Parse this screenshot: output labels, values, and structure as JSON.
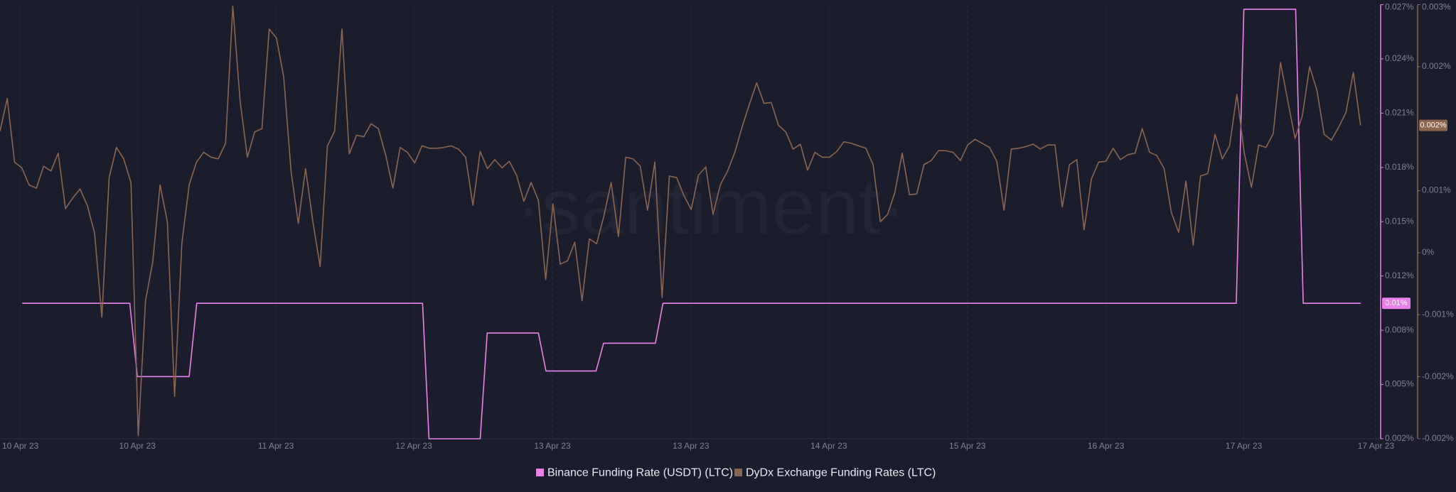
{
  "chart_data": {
    "type": "line",
    "watermark": "·santiment·",
    "xlim": [
      0,
      237.2
    ],
    "xticks": [
      {
        "value": 3.5,
        "label": "10 Apr 23"
      },
      {
        "value": 23.6,
        "label": "10 Apr 23"
      },
      {
        "value": 47.4,
        "label": "11 Apr 23"
      },
      {
        "value": 71.1,
        "label": "12 Apr 23"
      },
      {
        "value": 94.9,
        "label": "13 Apr 23"
      },
      {
        "value": 118.7,
        "label": "13 Apr 23"
      },
      {
        "value": 142.4,
        "label": "14 Apr 23"
      },
      {
        "value": 166.2,
        "label": "15 Apr 23"
      },
      {
        "value": 190,
        "label": "16 Apr 23"
      },
      {
        "value": 213.7,
        "label": "17 Apr 23"
      },
      {
        "value": 236.4,
        "label": "17 Apr 23"
      }
    ],
    "ylim": [
      0.0022,
      0.0272
    ],
    "yticks": [
      {
        "value": 0.0272,
        "label": "0.027%"
      },
      {
        "value": 0.024075,
        "label": "0.024%"
      },
      {
        "value": 0.02095,
        "label": "0.021%"
      },
      {
        "value": 0.017825,
        "label": "0.018%"
      },
      {
        "value": 0.0147,
        "label": "0.015%"
      },
      {
        "value": 0.011575,
        "label": "0.012%"
      },
      {
        "value": 0.00845,
        "label": "0.008%"
      },
      {
        "value": 0.005325,
        "label": "0.005%"
      },
      {
        "value": 0.0022,
        "label": "0.002%"
      }
    ],
    "y2lim": [
      -0.00228,
      0.00304
    ],
    "y2ticks": [
      {
        "value": 0.00304,
        "label": "0.003%"
      },
      {
        "value": 0.00228,
        "label": "0.002%"
      },
      {
        "value": 0.00076,
        "label": "0.001%"
      },
      {
        "value": 0,
        "label": "0%"
      },
      {
        "value": -0.00076,
        "label": "-0.001%"
      },
      {
        "value": -0.00152,
        "label": "-0.002%"
      },
      {
        "value": -0.00228,
        "label": "-0.002%"
      }
    ],
    "grid": true,
    "series": [
      {
        "name": "Binance Funding Rate (USDT) (LTC)",
        "color": "#ea80e9",
        "axis": "y",
        "last_value_label": "0.01%",
        "x": [
          3.8,
          22.3,
          23.6,
          32.5,
          33.8,
          72.6,
          73.7,
          82.5,
          83.7,
          92.5,
          93.8,
          102.4,
          103.7,
          112.6,
          113.9,
          212.4,
          213.7,
          222.6,
          223.9,
          233.8
        ],
        "values": [
          0.01,
          0.01,
          0.00578,
          0.00578,
          0.01,
          0.01,
          0.0022,
          0.0022,
          0.00829,
          0.00829,
          0.0061,
          0.0061,
          0.0077,
          0.0077,
          0.01,
          0.01,
          0.02693,
          0.02693,
          0.01,
          0.01
        ]
      },
      {
        "name": "DyDx Exchange Funding Rates (LTC)",
        "color": "#8c6550",
        "axis": "y2",
        "last_value_label": "0.002%",
        "x": [
          0,
          1.25,
          2.5,
          3.75,
          5,
          6.25,
          7.5,
          8.75,
          10,
          11.25,
          12.5,
          13.75,
          15,
          16.25,
          17.5,
          18.75,
          20,
          21.25,
          22.5,
          23.75,
          25,
          26.25,
          27.5,
          28.75,
          30,
          31.25,
          32.5,
          33.75,
          35,
          36.25,
          37.5,
          38.75,
          40,
          41.25,
          42.5,
          43.75,
          45,
          46.25,
          47.5,
          48.75,
          50,
          51.25,
          52.5,
          53.75,
          55,
          56.25,
          57.5,
          58.75,
          60,
          61.25,
          62.5,
          63.75,
          65,
          66.25,
          67.5,
          68.75,
          70,
          71.25,
          72.5,
          73.75,
          75,
          76.25,
          77.5,
          78.75,
          80,
          81.25,
          82.5,
          83.75,
          85,
          86.25,
          87.5,
          88.75,
          90,
          91.25,
          92.5,
          93.75,
          95,
          96.25,
          97.5,
          98.75,
          100,
          101.25,
          102.5,
          103.75,
          105,
          106.25,
          107.5,
          108.75,
          110,
          111.25,
          112.5,
          113.75,
          115,
          116.25,
          117.5,
          118.75,
          120,
          121.25,
          122.5,
          123.75,
          125,
          126.25,
          127.5,
          128.75,
          130,
          131.25,
          132.5,
          133.75,
          135,
          136.25,
          137.5,
          138.75,
          140,
          141.25,
          142.5,
          143.75,
          145,
          146.25,
          147.5,
          148.75,
          150,
          151.25,
          152.5,
          153.75,
          155,
          156.25,
          157.5,
          158.75,
          160,
          161.25,
          162.5,
          163.75,
          165,
          166.25,
          167.5,
          168.75,
          170,
          171.25,
          172.5,
          173.75,
          175,
          176.25,
          177.5,
          178.75,
          180,
          181.25,
          182.5,
          183.75,
          185,
          186.25,
          187.5,
          188.75,
          190,
          191.25,
          192.5,
          193.75,
          195,
          196.25,
          197.5,
          198.75,
          200,
          201.25,
          202.5,
          203.75,
          205,
          206.25,
          207.5,
          208.75,
          210,
          211.25,
          212.5,
          213.75,
          215,
          216.25,
          217.5,
          218.75,
          220,
          221.25,
          222.5,
          223.75,
          225,
          226.25,
          227.5,
          228.75,
          230,
          231.25,
          232.5,
          233.75
        ],
        "values": [
          0.00149,
          0.00189,
          0.00111,
          0.00104,
          0.00083,
          0.00079,
          0.00106,
          0.001,
          0.00122,
          0.00054,
          0.00067,
          0.00078,
          0.00058,
          0.00024,
          -0.00079,
          0.00092,
          0.00129,
          0.00115,
          0.00086,
          -0.00224,
          -0.00059,
          -0.00011,
          0.00083,
          0.00038,
          -0.00176,
          0.00012,
          0.00083,
          0.00111,
          0.00123,
          0.00117,
          0.00115,
          0.00134,
          0.00302,
          0.00186,
          0.00117,
          0.00148,
          0.00152,
          0.00274,
          0.00263,
          0.00215,
          0.001,
          0.00036,
          0.00103,
          0.00038,
          -0.00017,
          0.00131,
          0.00149,
          0.00274,
          0.00121,
          0.00144,
          0.00142,
          0.00158,
          0.00152,
          0.0012,
          0.00079,
          0.00129,
          0.00123,
          0.0011,
          0.00131,
          0.00128,
          0.00128,
          0.00129,
          0.00131,
          0.00127,
          0.00117,
          0.00058,
          0.00124,
          0.00103,
          0.00114,
          0.00104,
          0.00112,
          0.00095,
          0.00063,
          0.00086,
          0.00064,
          -0.00033,
          0.0006,
          -0.00014,
          -0.0001,
          0.00013,
          -0.00059,
          0.00017,
          0.00011,
          0.00045,
          0.00086,
          0.0002,
          0.00117,
          0.00115,
          0.00106,
          0.00052,
          0.00111,
          -0.00055,
          0.00094,
          0.00092,
          0.0007,
          0.00053,
          0.00095,
          0.00105,
          0.00047,
          0.00083,
          0.001,
          0.00123,
          0.00154,
          0.00182,
          0.00208,
          0.00183,
          0.00184,
          0.00156,
          0.00148,
          0.00127,
          0.00133,
          0.00101,
          0.00123,
          0.00117,
          0.00117,
          0.00124,
          0.00136,
          0.00134,
          0.00131,
          0.00128,
          0.00108,
          0.00038,
          0.00047,
          0.00074,
          0.00122,
          0.00071,
          0.00072,
          0.00108,
          0.00113,
          0.00125,
          0.00125,
          0.00123,
          0.00113,
          0.00132,
          0.00139,
          0.00134,
          0.00129,
          0.00112,
          0.00052,
          0.00127,
          0.00128,
          0.0013,
          0.00133,
          0.00127,
          0.00132,
          0.00132,
          0.00056,
          0.00108,
          0.00114,
          0.00028,
          0.0009,
          0.00111,
          0.00112,
          0.00128,
          0.00114,
          0.0012,
          0.00122,
          0.00152,
          0.00123,
          0.00119,
          0.00103,
          0.00049,
          0.00025,
          0.00088,
          9e-05,
          0.00094,
          0.00097,
          0.00145,
          0.00115,
          0.00131,
          0.00194,
          0.00123,
          0.0008,
          0.00132,
          0.00129,
          0.00146,
          0.00233,
          0.00186,
          0.0014,
          0.00168,
          0.00228,
          0.00199,
          0.00145,
          0.00138,
          0.00154,
          0.00172,
          0.00221,
          0.00156
        ]
      }
    ]
  }
}
